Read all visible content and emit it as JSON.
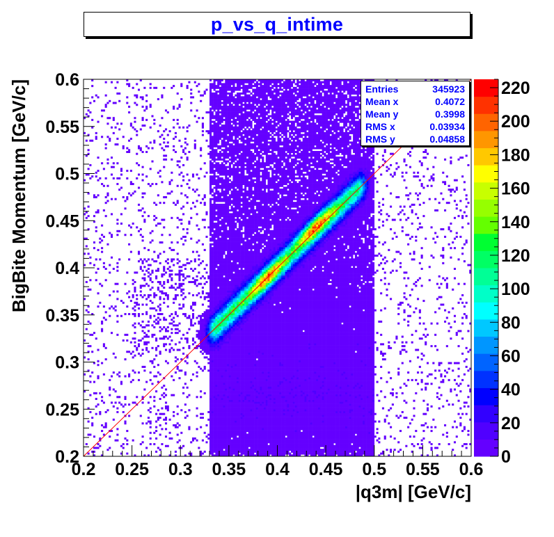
{
  "title": "p_vs_q_intime",
  "stats": {
    "rows": [
      {
        "label": "Entries",
        "value": "345923"
      },
      {
        "label": "Mean x",
        "value": "0.4072"
      },
      {
        "label": "Mean y",
        "value": "0.3998"
      },
      {
        "label": "RMS x",
        "value": "0.03934"
      },
      {
        "label": "RMS y",
        "value": "0.04858"
      }
    ]
  },
  "colors": {
    "palette": [
      "#6400ff",
      "#5000ff",
      "#3200ff",
      "#0000ff",
      "#0032ff",
      "#0064ff",
      "#0096ff",
      "#00c8ff",
      "#00ffff",
      "#00ffc8",
      "#00ff96",
      "#00ff64",
      "#00ff32",
      "#64ff00",
      "#96ff00",
      "#c8ff00",
      "#ffff00",
      "#ffc800",
      "#ff9600",
      "#ff6400",
      "#ff3200",
      "#ff0000"
    ],
    "fit_line": "#ff0000"
  },
  "chart_data": {
    "type": "heatmap",
    "title": "p_vs_q_intime",
    "xlabel": "|q3m| [GeV/c]",
    "ylabel": "BigBite Momentum [GeV/c]",
    "xlim": [
      0.2,
      0.6
    ],
    "ylim": [
      0.2,
      0.6
    ],
    "x_ticks": [
      "0.2",
      "0.25",
      "0.3",
      "0.35",
      "0.4",
      "0.45",
      "0.5",
      "0.55",
      "0.6"
    ],
    "y_ticks": [
      "0.2",
      "0.25",
      "0.3",
      "0.35",
      "0.4",
      "0.45",
      "0.5",
      "0.55",
      "0.6"
    ],
    "z_range": [
      0,
      225
    ],
    "z_ticks": [
      "0",
      "20",
      "40",
      "60",
      "80",
      "100",
      "120",
      "140",
      "160",
      "180",
      "200",
      "220"
    ],
    "grid": false,
    "entries": 345923,
    "mean_x": 0.4072,
    "mean_y": 0.3998,
    "rms_x": 0.03934,
    "rms_y": 0.04858,
    "reference_line": {
      "x": [
        0.2,
        0.6
      ],
      "y": [
        0.2,
        0.6
      ]
    },
    "band": {
      "x_range": [
        0.33,
        0.495
      ],
      "main_ridge": {
        "x": [
          0.33,
          0.49
        ],
        "y": [
          0.33,
          0.49
        ]
      },
      "peaks": [
        {
          "x": 0.39,
          "y": 0.39,
          "z": 180
        },
        {
          "x": 0.44,
          "y": 0.445,
          "z": 220
        }
      ],
      "background_x_range": [
        0.33,
        0.5
      ],
      "background_y_range": [
        0.2,
        0.6
      ]
    }
  }
}
